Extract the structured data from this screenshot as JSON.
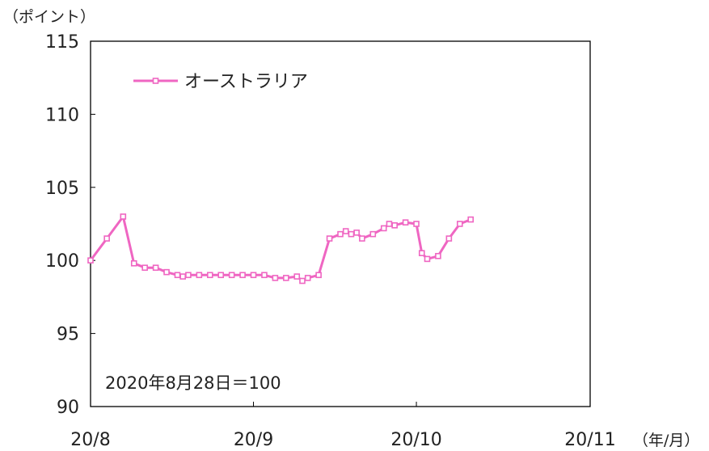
{
  "chart_data": {
    "type": "line",
    "title": "",
    "ylabel": "（ポイント）",
    "xlabel": "（年/月）",
    "note": "2020年8月28日＝100",
    "ylim": [
      90,
      115
    ],
    "yticks": [
      90,
      95,
      100,
      105,
      110,
      115
    ],
    "xlim": [
      0,
      46
    ],
    "xticks": [
      {
        "x": 0,
        "label": "20/8"
      },
      {
        "x": 15,
        "label": "20/9"
      },
      {
        "x": 30,
        "label": "20/10"
      },
      {
        "x": 46,
        "label": "20/11"
      }
    ],
    "series": [
      {
        "name": "オーストラリア",
        "color": "#ef66c2",
        "width": 3,
        "marker": "square",
        "points": [
          [
            0,
            100
          ],
          [
            1.5,
            101.5
          ],
          [
            3,
            103
          ],
          [
            4,
            99.8
          ],
          [
            5,
            99.5
          ],
          [
            6,
            99.5
          ],
          [
            7,
            99.2
          ],
          [
            8,
            99
          ],
          [
            8.5,
            98.9
          ],
          [
            9,
            99
          ],
          [
            10,
            99
          ],
          [
            11,
            99
          ],
          [
            12,
            99
          ],
          [
            13,
            99
          ],
          [
            14,
            99
          ],
          [
            15,
            99
          ],
          [
            16,
            99
          ],
          [
            17,
            98.8
          ],
          [
            18,
            98.8
          ],
          [
            19,
            98.9
          ],
          [
            19.5,
            98.6
          ],
          [
            20,
            98.8
          ],
          [
            21,
            99
          ],
          [
            22,
            101.5
          ],
          [
            23,
            101.8
          ],
          [
            23.5,
            102
          ],
          [
            24,
            101.8
          ],
          [
            24.5,
            101.9
          ],
          [
            25,
            101.5
          ],
          [
            26,
            101.8
          ],
          [
            27,
            102.2
          ],
          [
            27.5,
            102.5
          ],
          [
            28,
            102.4
          ],
          [
            29,
            102.6
          ],
          [
            30,
            102.5
          ],
          [
            30.5,
            100.5
          ],
          [
            31,
            100.1
          ],
          [
            32,
            100.3
          ],
          [
            33,
            101.5
          ],
          [
            34,
            102.5
          ],
          [
            35,
            102.8
          ]
        ]
      }
    ]
  }
}
